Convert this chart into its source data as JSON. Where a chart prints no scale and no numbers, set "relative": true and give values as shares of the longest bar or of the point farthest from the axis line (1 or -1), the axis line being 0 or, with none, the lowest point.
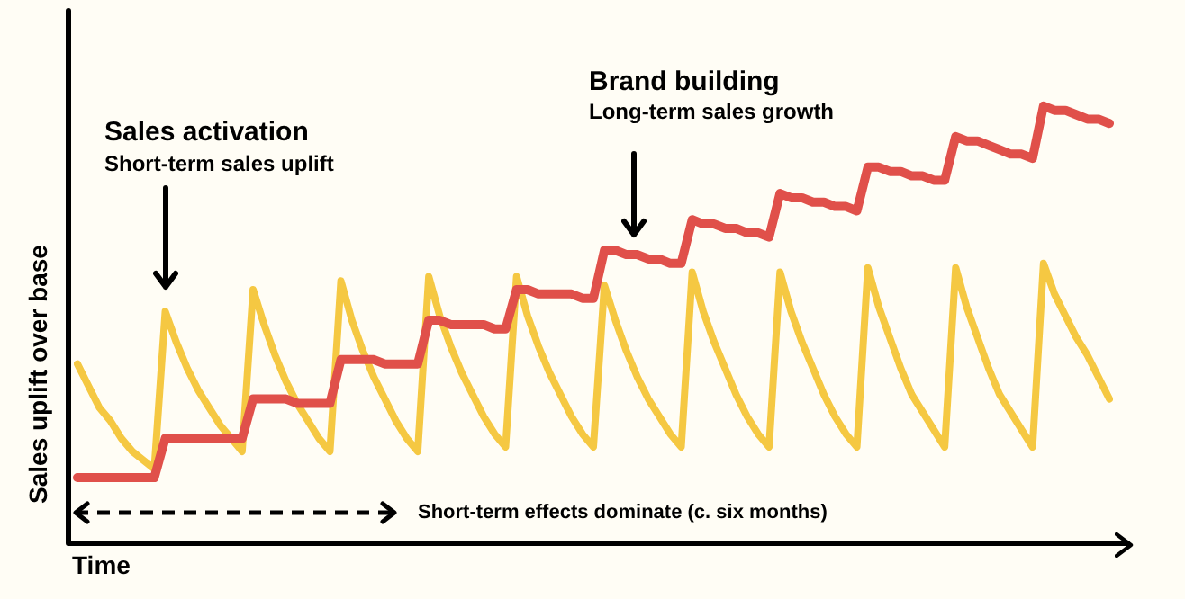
{
  "chart_data": {
    "type": "line",
    "relative": true,
    "xlabel": "Time",
    "ylabel": "Sales uplift over base",
    "tick_labels": false,
    "categories": [
      null,
      null,
      null,
      null,
      null,
      null,
      null,
      null,
      null,
      null,
      null,
      null,
      null,
      null,
      null,
      null,
      null,
      null,
      null,
      null,
      null,
      null,
      null,
      null,
      null,
      null,
      null,
      null,
      null,
      null,
      null,
      null,
      null,
      null,
      null,
      null,
      null,
      null,
      null,
      null,
      null,
      null,
      null,
      null,
      null,
      null,
      null,
      null,
      null,
      null,
      null,
      null,
      null,
      null,
      null,
      null,
      null,
      null,
      null,
      null,
      null,
      null,
      null,
      null,
      null,
      null,
      null,
      null,
      null,
      null,
      null,
      null,
      null,
      null,
      null,
      null,
      null,
      null,
      null,
      null,
      null,
      null,
      null,
      null,
      null,
      null,
      null,
      null,
      null,
      null,
      null,
      null,
      null,
      null,
      null
    ],
    "series": [
      {
        "color": "#f5c842",
        "values": [
          0.41,
          0.36,
          0.31,
          0.28,
          0.24,
          0.21,
          0.19,
          0.17,
          0.53,
          0.46,
          0.4,
          0.35,
          0.31,
          0.27,
          0.24,
          0.21,
          0.58,
          0.5,
          0.43,
          0.37,
          0.32,
          0.28,
          0.24,
          0.21,
          0.6,
          0.51,
          0.44,
          0.38,
          0.33,
          0.28,
          0.24,
          0.21,
          0.61,
          0.52,
          0.45,
          0.39,
          0.34,
          0.29,
          0.25,
          0.22,
          0.61,
          0.52,
          0.45,
          0.39,
          0.34,
          0.29,
          0.25,
          0.22,
          0.59,
          0.51,
          0.44,
          0.38,
          0.33,
          0.29,
          0.25,
          0.22,
          0.62,
          0.53,
          0.46,
          0.4,
          0.34,
          0.29,
          0.25,
          0.22,
          0.62,
          0.53,
          0.46,
          0.4,
          0.34,
          0.29,
          0.25,
          0.22,
          0.63,
          0.54,
          0.47,
          0.4,
          0.34,
          0.3,
          0.26,
          0.22,
          0.63,
          0.54,
          0.47,
          0.4,
          0.34,
          0.3,
          0.26,
          0.22,
          0.64,
          0.57,
          0.52,
          0.47,
          0.43,
          0.38,
          0.33
        ]
      },
      {
        "color": "#e0504a",
        "values": [
          0.15,
          0.15,
          0.15,
          0.15,
          0.15,
          0.15,
          0.15,
          0.15,
          0.24,
          0.24,
          0.24,
          0.24,
          0.24,
          0.24,
          0.24,
          0.24,
          0.33,
          0.33,
          0.33,
          0.33,
          0.32,
          0.32,
          0.32,
          0.32,
          0.42,
          0.42,
          0.42,
          0.42,
          0.41,
          0.41,
          0.41,
          0.41,
          0.51,
          0.51,
          0.5,
          0.5,
          0.5,
          0.5,
          0.49,
          0.49,
          0.58,
          0.58,
          0.57,
          0.57,
          0.57,
          0.57,
          0.56,
          0.56,
          0.67,
          0.67,
          0.66,
          0.66,
          0.65,
          0.65,
          0.64,
          0.64,
          0.74,
          0.73,
          0.73,
          0.72,
          0.72,
          0.71,
          0.71,
          0.7,
          0.8,
          0.79,
          0.79,
          0.78,
          0.78,
          0.77,
          0.77,
          0.76,
          0.86,
          0.86,
          0.85,
          0.85,
          0.84,
          0.84,
          0.83,
          0.83,
          0.93,
          0.92,
          0.92,
          0.91,
          0.9,
          0.89,
          0.89,
          0.88,
          1.0,
          0.99,
          0.99,
          0.98,
          0.97,
          0.97,
          0.96
        ]
      }
    ],
    "annotations": [
      "Sales activation",
      "Short-term sales uplift",
      "Brand building",
      "Long-term sales growth",
      "Short-term effects dominate (c. six months)"
    ]
  }
}
